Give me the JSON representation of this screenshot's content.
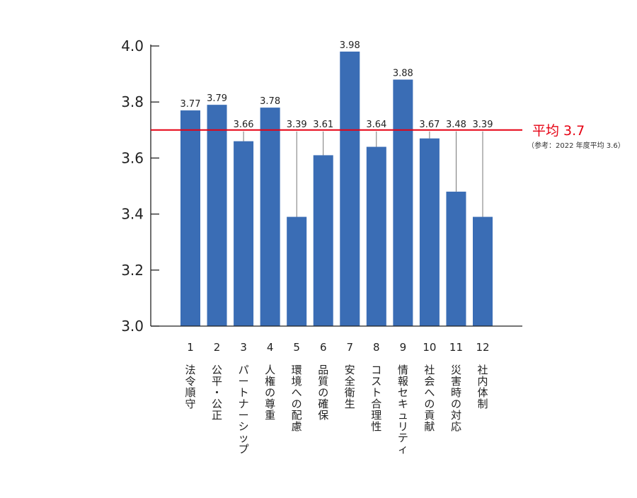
{
  "chart_data": {
    "type": "bar",
    "categories": [
      "1",
      "2",
      "3",
      "4",
      "5",
      "6",
      "7",
      "8",
      "9",
      "10",
      "11",
      "12"
    ],
    "category_labels": [
      "法令順守",
      "公平・公正",
      "パートナーシップ",
      "人権の尊重",
      "環境への配慮",
      "品質の確保",
      "安全衛生",
      "コスト合理性",
      "情報セキュリティ",
      "社会への貢献",
      "災害時の対応",
      "社内体制"
    ],
    "values": [
      3.77,
      3.79,
      3.66,
      3.78,
      3.39,
      3.61,
      3.98,
      3.64,
      3.88,
      3.67,
      3.48,
      3.39
    ],
    "value_labels": [
      "3.77",
      "3.79",
      "3.66",
      "3.78",
      "3.39",
      "3.61",
      "3.98",
      "3.64",
      "3.88",
      "3.67",
      "3.48",
      "3.39"
    ],
    "ylim": [
      3.0,
      4.0
    ],
    "yticks": [
      "3.0",
      "3.2",
      "3.4",
      "3.6",
      "3.8",
      "4.0"
    ],
    "reference_line": {
      "value": 3.7,
      "label": "平均 3.7",
      "note": "（参考：2022 年度平均 3.6）",
      "color": "#e60012"
    },
    "bar_color": "#3a6db5",
    "grid": false,
    "legend": "none"
  }
}
